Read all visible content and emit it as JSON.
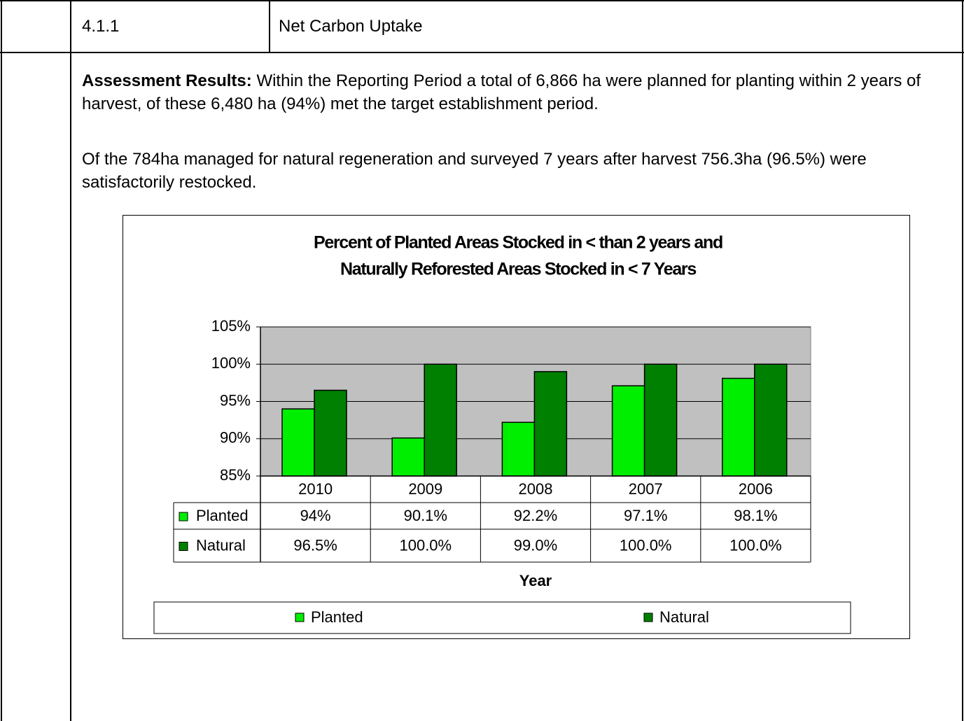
{
  "header": {
    "number": "4.1.1",
    "title": "Net Carbon Uptake"
  },
  "body": {
    "paragraphs": [
      {
        "label": "Assessment Results:",
        "text": "Within the Reporting Period a total of 6,866 ha were planned for planting within 2 years of harvest, of these 6,480 ha (94%) met the target establishment period."
      },
      {
        "text": "Of the 784ha managed for natural regeneration and surveyed 7 years after harvest 756.3ha (96.5%) were satisfactorily restocked."
      }
    ]
  },
  "chart_data": {
    "type": "bar",
    "title": [
      "Percent of Planted Areas Stocked in < than  2 years and",
      "Naturally Reforested Areas Stocked in < 7 Years"
    ],
    "categories": [
      "2010",
      "2009",
      "2008",
      "2007",
      "2006"
    ],
    "series": [
      {
        "name": "Planted",
        "color": "#00ee00",
        "values": [
          94,
          90.1,
          92.2,
          97.1,
          98.1
        ],
        "value_labels": [
          "94%",
          "90.1%",
          "92.2%",
          "97.1%",
          "98.1%"
        ]
      },
      {
        "name": "Natural",
        "color": "#008000",
        "values": [
          96.5,
          100,
          99,
          100,
          100
        ],
        "value_labels": [
          "96.5%",
          "100.0%",
          "99.0%",
          "100.0%",
          "100.0%"
        ]
      }
    ],
    "ylim": [
      85,
      105
    ],
    "yticks": [
      {
        "value": 85,
        "label": "85%"
      },
      {
        "value": 90,
        "label": "90%"
      },
      {
        "value": 95,
        "label": "95%"
      },
      {
        "value": 100,
        "label": "100%"
      },
      {
        "value": 105,
        "label": "105%"
      }
    ],
    "xlabel": "Year",
    "grid": true,
    "legend": "bottom",
    "plot_background": "#c0c0c0"
  }
}
